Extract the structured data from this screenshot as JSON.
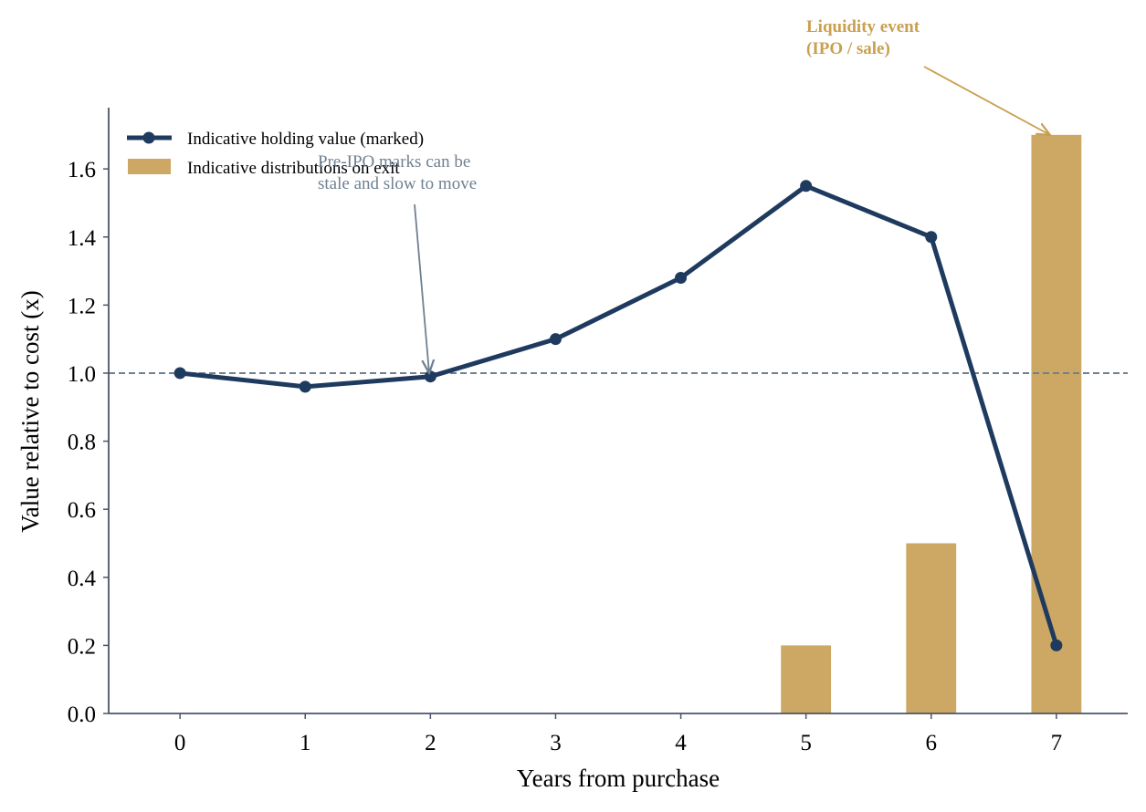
{
  "colors": {
    "line": "#1f3a5f",
    "bar": "#cca864",
    "reference": "#708090",
    "annotation_gray": "#708090",
    "annotation_gold": "#c9a04f",
    "axis": "#4a5568"
  },
  "chart_data": {
    "type": "line+bar",
    "title": "",
    "xlabel": "Years from purchase",
    "ylabel": "Value relative to cost (x)",
    "x": [
      0,
      1,
      2,
      3,
      4,
      5,
      6,
      7
    ],
    "xlim": [
      -0.57,
      7.57
    ],
    "ylim": [
      0,
      1.78
    ],
    "yticks": [
      0.0,
      0.2,
      0.4,
      0.6,
      0.8,
      1.0,
      1.2,
      1.4,
      1.6
    ],
    "ytick_labels": [
      "0.0",
      "0.2",
      "0.4",
      "0.6",
      "0.8",
      "1.0",
      "1.2",
      "1.4",
      "1.6"
    ],
    "xtick_labels": [
      "0",
      "1",
      "2",
      "3",
      "4",
      "5",
      "6",
      "7"
    ],
    "reference_line": {
      "y": 1.0,
      "style": "dashed"
    },
    "series": [
      {
        "name": "Indicative holding value (marked)",
        "kind": "line",
        "values": [
          1.0,
          0.96,
          0.99,
          1.1,
          1.28,
          1.55,
          1.4,
          0.2
        ]
      },
      {
        "name": "Indicative distributions on exit",
        "kind": "bar",
        "values": [
          0,
          0,
          0,
          0,
          0,
          0.2,
          0.5,
          1.7
        ]
      }
    ],
    "legend": {
      "position": "top-left"
    },
    "grid": false,
    "annotations": [
      {
        "id": "stale",
        "lines": [
          "Pre-IPO marks can be",
          "stale and slow to move"
        ],
        "arrow_to": {
          "x": 2,
          "y": 0.99
        },
        "color": "annotation_gray"
      },
      {
        "id": "liquidity",
        "lines": [
          "Liquidity event",
          "(IPO / sale)"
        ],
        "arrow_to": {
          "x": 7,
          "y": 1.7
        },
        "color": "annotation_gold"
      }
    ]
  }
}
